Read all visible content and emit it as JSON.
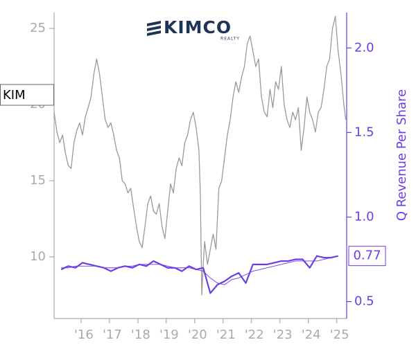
{
  "chart_data": {
    "type": "line",
    "logo": {
      "name": "KIMCO",
      "tagline": "REALTY"
    },
    "y2label": "Q Revenue Per Share",
    "xlim": [
      2015.05,
      2025.35
    ],
    "xticks": [
      {
        "value": 2016,
        "label": "'16"
      },
      {
        "value": 2017,
        "label": "'17"
      },
      {
        "value": 2018,
        "label": "'18"
      },
      {
        "value": 2019,
        "label": "'19"
      },
      {
        "value": 2020,
        "label": "'20"
      },
      {
        "value": 2021,
        "label": "'21"
      },
      {
        "value": 2022,
        "label": "'22"
      },
      {
        "value": 2023,
        "label": "'23"
      },
      {
        "value": 2024,
        "label": "'24"
      },
      {
        "value": 2025,
        "label": "'25"
      }
    ],
    "ylim": [
      5.95,
      26.05
    ],
    "yticks": [
      10,
      15,
      20,
      25
    ],
    "y2lim": [
      0.4,
      2.21
    ],
    "y2ticks": [
      0.5,
      {
        "value": 1,
        "label": "1.0"
      },
      1.5,
      {
        "value": 2,
        "label": "2.0"
      }
    ],
    "series": [
      {
        "name": "KIM",
        "color": "#999999",
        "axis": "y",
        "width": 1.3,
        "x": [
          2015.05,
          2015.15,
          2015.25,
          2015.35,
          2015.45,
          2015.55,
          2015.65,
          2015.75,
          2015.85,
          2015.95,
          2016.05,
          2016.15,
          2016.25,
          2016.35,
          2016.45,
          2016.55,
          2016.65,
          2016.75,
          2016.85,
          2016.95,
          2017.05,
          2017.15,
          2017.25,
          2017.35,
          2017.45,
          2017.55,
          2017.65,
          2017.75,
          2017.85,
          2017.95,
          2018.05,
          2018.15,
          2018.25,
          2018.35,
          2018.45,
          2018.55,
          2018.65,
          2018.75,
          2018.85,
          2018.95,
          2019.05,
          2019.15,
          2019.25,
          2019.35,
          2019.45,
          2019.55,
          2019.65,
          2019.75,
          2019.85,
          2019.95,
          2020.05,
          2020.15,
          2020.2,
          2020.25,
          2020.3,
          2020.35,
          2020.45,
          2020.55,
          2020.65,
          2020.75,
          2020.85,
          2020.95,
          2021.05,
          2021.15,
          2021.25,
          2021.35,
          2021.45,
          2021.55,
          2021.65,
          2021.75,
          2021.85,
          2021.95,
          2022.05,
          2022.15,
          2022.25,
          2022.35,
          2022.45,
          2022.55,
          2022.65,
          2022.75,
          2022.85,
          2022.95,
          2023.05,
          2023.15,
          2023.25,
          2023.35,
          2023.45,
          2023.55,
          2023.65,
          2023.75,
          2023.85,
          2023.95,
          2024.05,
          2024.15,
          2024.25,
          2024.35,
          2024.45,
          2024.55,
          2024.65,
          2024.75,
          2024.85,
          2024.95,
          2025.05,
          2025.15,
          2025.25,
          2025.32
        ],
        "values": [
          19.5,
          18.2,
          17.5,
          18.0,
          16.8,
          16.0,
          15.8,
          17.5,
          18.3,
          18.8,
          18.0,
          19.2,
          19.8,
          20.5,
          22.0,
          23.0,
          22.0,
          20.5,
          19.0,
          18.5,
          18.8,
          18.0,
          17.0,
          16.5,
          15.0,
          14.8,
          14.2,
          14.5,
          13.2,
          12.0,
          11.0,
          10.6,
          12.0,
          13.5,
          14.0,
          13.0,
          12.8,
          13.5,
          12.0,
          11.2,
          13.0,
          14.8,
          14.2,
          15.8,
          16.5,
          16.0,
          17.5,
          18.0,
          19.0,
          19.5,
          18.5,
          17.0,
          14.0,
          7.5,
          9.5,
          11.0,
          9.5,
          10.5,
          11.5,
          10.5,
          14.5,
          15.0,
          16.5,
          18.0,
          19.0,
          20.5,
          21.5,
          20.8,
          21.8,
          22.5,
          24.0,
          24.5,
          23.5,
          22.5,
          23.0,
          20.5,
          19.5,
          19.2,
          21.0,
          19.8,
          21.5,
          21.0,
          22.5,
          20.0,
          19.0,
          18.5,
          19.5,
          19.0,
          19.8,
          17.0,
          18.5,
          20.5,
          19.5,
          19.0,
          18.2,
          19.5,
          19.8,
          21.0,
          22.5,
          23.0,
          25.0,
          25.8,
          23.5,
          22.0,
          20.0,
          19.0
        ]
      },
      {
        "color": "#6a3de8",
        "axis": "y2",
        "width": 2.2,
        "x": [
          2015.3,
          2015.55,
          2015.8,
          2016.05,
          2016.3,
          2016.55,
          2016.8,
          2017.05,
          2017.3,
          2017.55,
          2017.8,
          2018.05,
          2018.3,
          2018.55,
          2018.8,
          2019.05,
          2019.3,
          2019.55,
          2019.8,
          2020.05,
          2020.3,
          2020.55,
          2020.8,
          2021.05,
          2021.3,
          2021.55,
          2021.8,
          2022.05,
          2022.3,
          2022.55,
          2022.8,
          2023.05,
          2023.3,
          2023.55,
          2023.8,
          2024.05,
          2024.3,
          2024.55,
          2024.8,
          2025.05
        ],
        "values": [
          0.69,
          0.71,
          0.7,
          0.73,
          0.72,
          0.71,
          0.7,
          0.68,
          0.7,
          0.71,
          0.7,
          0.72,
          0.71,
          0.74,
          0.72,
          0.7,
          0.7,
          0.68,
          0.71,
          0.69,
          0.7,
          0.55,
          0.6,
          0.62,
          0.65,
          0.67,
          0.61,
          0.72,
          0.72,
          0.72,
          0.73,
          0.74,
          0.74,
          0.75,
          0.75,
          0.7,
          0.77,
          0.76,
          0.76,
          0.77
        ]
      },
      {
        "color": "#6a3de8",
        "axis": "y2",
        "width": 0.9,
        "x": [
          2015.3,
          2015.55,
          2015.8,
          2016.05,
          2016.3,
          2016.55,
          2016.8,
          2017.05,
          2017.3,
          2017.55,
          2017.8,
          2018.05,
          2018.3,
          2018.55,
          2018.8,
          2019.05,
          2019.3,
          2019.55,
          2019.8,
          2020.05,
          2020.3,
          2020.55,
          2020.8,
          2021.05,
          2021.3,
          2021.55,
          2021.8,
          2022.05,
          2022.3,
          2022.55,
          2022.8,
          2023.05,
          2023.3,
          2023.55,
          2023.8,
          2024.05,
          2024.3,
          2024.55,
          2024.8,
          2025.05
        ],
        "values": [
          0.7,
          0.7,
          0.71,
          0.71,
          0.71,
          0.71,
          0.7,
          0.7,
          0.7,
          0.71,
          0.71,
          0.72,
          0.72,
          0.72,
          0.72,
          0.71,
          0.7,
          0.7,
          0.7,
          0.69,
          0.68,
          0.64,
          0.61,
          0.6,
          0.63,
          0.64,
          0.66,
          0.68,
          0.69,
          0.7,
          0.71,
          0.72,
          0.73,
          0.74,
          0.74,
          0.74,
          0.74,
          0.75,
          0.76,
          0.77
        ]
      }
    ]
  }
}
